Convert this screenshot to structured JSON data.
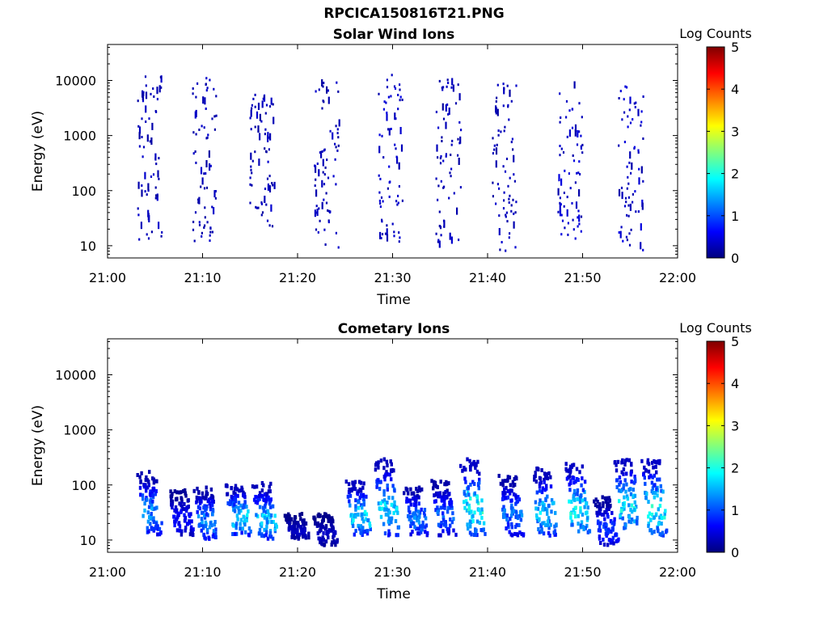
{
  "figure_title": "RPCICA150816T21.PNG",
  "colors": {
    "colormap": [
      "#00007f",
      "#0000ff",
      "#007fff",
      "#00ffff",
      "#7fff7f",
      "#ffff00",
      "#ff7f00",
      "#ff0000",
      "#7f0000"
    ],
    "axis": "#000000",
    "background": "#ffffff"
  },
  "chart_data": [
    {
      "type": "heatmap",
      "title": "Solar Wind Ions",
      "xlabel": "Time",
      "ylabel": "Energy (eV)",
      "x_ticks": [
        "21:00",
        "21:10",
        "21:20",
        "21:30",
        "21:40",
        "21:50",
        "22:00"
      ],
      "x_range_minutes": [
        0,
        60
      ],
      "y_scale": "log",
      "y_ticks": [
        10,
        100,
        1000,
        10000
      ],
      "y_tick_labels": [
        "10",
        "100",
        "1000",
        "10000"
      ],
      "y_range": [
        6,
        45000
      ],
      "colorbar": {
        "label": "Log Counts",
        "range": [
          0,
          5
        ],
        "ticks": [
          "0",
          "1",
          "2",
          "3",
          "4",
          "5"
        ]
      },
      "bursts": [
        {
          "t_minutes": 4.5,
          "e_low": 12,
          "e_high": 12000,
          "peak_log_counts": 0.4
        },
        {
          "t_minutes": 10.2,
          "e_low": 12,
          "e_high": 12000,
          "peak_log_counts": 0.4
        },
        {
          "t_minutes": 16.3,
          "e_low": 15,
          "e_high": 6000,
          "peak_log_counts": 0.4
        },
        {
          "t_minutes": 23.1,
          "e_low": 8,
          "e_high": 10000,
          "peak_log_counts": 0.4
        },
        {
          "t_minutes": 29.8,
          "e_low": 10,
          "e_high": 15000,
          "peak_log_counts": 0.5
        },
        {
          "t_minutes": 35.9,
          "e_low": 10,
          "e_high": 12000,
          "peak_log_counts": 0.4
        },
        {
          "t_minutes": 41.8,
          "e_low": 8,
          "e_high": 10000,
          "peak_log_counts": 0.4
        },
        {
          "t_minutes": 48.7,
          "e_low": 12,
          "e_high": 10000,
          "peak_log_counts": 0.5
        },
        {
          "t_minutes": 55.1,
          "e_low": 8,
          "e_high": 8000,
          "peak_log_counts": 0.5
        }
      ]
    },
    {
      "type": "heatmap",
      "title": "Cometary Ions",
      "xlabel": "Time",
      "ylabel": "Energy (eV)",
      "x_ticks": [
        "21:00",
        "21:10",
        "21:20",
        "21:30",
        "21:40",
        "21:50",
        "22:00"
      ],
      "x_range_minutes": [
        0,
        60
      ],
      "y_scale": "log",
      "y_ticks": [
        10,
        100,
        1000,
        10000
      ],
      "y_tick_labels": [
        "10",
        "100",
        "1000",
        "10000"
      ],
      "y_range": [
        6,
        45000
      ],
      "colorbar": {
        "label": "Log Counts",
        "range": [
          0,
          5
        ],
        "ticks": [
          "0",
          "1",
          "2",
          "3",
          "4",
          "5"
        ]
      },
      "bursts": [
        {
          "t_minutes": 4.5,
          "e_low": 12,
          "e_high": 180,
          "peak_log_counts": 1.6
        },
        {
          "t_minutes": 7.8,
          "e_low": 12,
          "e_high": 80,
          "peak_log_counts": 0.8
        },
        {
          "t_minutes": 10.4,
          "e_low": 10,
          "e_high": 90,
          "peak_log_counts": 1.5
        },
        {
          "t_minutes": 13.8,
          "e_low": 12,
          "e_high": 100,
          "peak_log_counts": 2.0
        },
        {
          "t_minutes": 16.6,
          "e_low": 10,
          "e_high": 110,
          "peak_log_counts": 1.9
        },
        {
          "t_minutes": 20.0,
          "e_low": 10,
          "e_high": 30,
          "peak_log_counts": 0.4
        },
        {
          "t_minutes": 23.0,
          "e_low": 8,
          "e_high": 30,
          "peak_log_counts": 0.4
        },
        {
          "t_minutes": 26.4,
          "e_low": 12,
          "e_high": 120,
          "peak_log_counts": 2.1
        },
        {
          "t_minutes": 29.4,
          "e_low": 12,
          "e_high": 300,
          "peak_log_counts": 2.0
        },
        {
          "t_minutes": 32.5,
          "e_low": 12,
          "e_high": 90,
          "peak_log_counts": 1.5
        },
        {
          "t_minutes": 35.3,
          "e_low": 12,
          "e_high": 120,
          "peak_log_counts": 1.3
        },
        {
          "t_minutes": 38.4,
          "e_low": 12,
          "e_high": 300,
          "peak_log_counts": 2.3
        },
        {
          "t_minutes": 42.5,
          "e_low": 12,
          "e_high": 150,
          "peak_log_counts": 1.4
        },
        {
          "t_minutes": 46.0,
          "e_low": 12,
          "e_high": 200,
          "peak_log_counts": 1.9
        },
        {
          "t_minutes": 49.5,
          "e_low": 12,
          "e_high": 250,
          "peak_log_counts": 2.2
        },
        {
          "t_minutes": 52.5,
          "e_low": 8,
          "e_high": 60,
          "peak_log_counts": 1.1
        },
        {
          "t_minutes": 54.7,
          "e_low": 15,
          "e_high": 300,
          "peak_log_counts": 2.2
        },
        {
          "t_minutes": 57.6,
          "e_low": 12,
          "e_high": 300,
          "peak_log_counts": 2.3
        }
      ]
    }
  ]
}
